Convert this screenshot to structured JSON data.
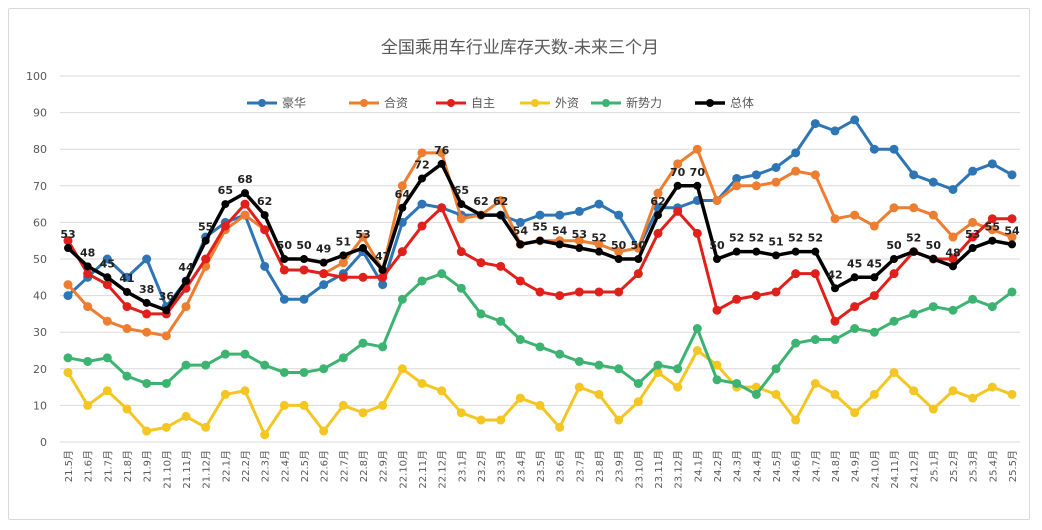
{
  "chart_data": {
    "type": "line",
    "title": "全国乘用车行业库存天数-未来三个月",
    "ylim": [
      0,
      100
    ],
    "yticks": [
      0,
      10,
      20,
      30,
      40,
      50,
      60,
      70,
      80,
      90,
      100
    ],
    "grid": true,
    "legend_position": "top",
    "categories": [
      "21.5月",
      "21.6月",
      "21.7月",
      "21.8月",
      "21.9月",
      "21.10月",
      "21.11月",
      "21.12月",
      "22.1月",
      "22.2月",
      "22.3月",
      "22.4月",
      "22.5月",
      "22.6月",
      "22.7月",
      "22.8月",
      "22.9月",
      "22.10月",
      "22.11月",
      "22.12月",
      "23.1月",
      "23.2月",
      "23.3月",
      "23.4月",
      "23.5月",
      "23.6月",
      "23.7月",
      "23.8月",
      "23.9月",
      "23.10月",
      "23.11月",
      "23.12月",
      "24.1月",
      "24.2月",
      "24.3月",
      "24.4月",
      "24.5月",
      "24.6月",
      "24.7月",
      "24.8月",
      "24.9月",
      "24.10月",
      "24.11月",
      "24.12月",
      "25.1月",
      "25.2月",
      "25.3月",
      "25.4月",
      "25.5月"
    ],
    "series": [
      {
        "name": "豪华",
        "color": "#2e75b6",
        "values": [
          40,
          45,
          50,
          45,
          50,
          37,
          44,
          56,
          60,
          62,
          48,
          39,
          39,
          43,
          46,
          52,
          43,
          60,
          65,
          64,
          62,
          62,
          62,
          60,
          62,
          62,
          63,
          65,
          62,
          53,
          64,
          64,
          66,
          66,
          72,
          73,
          75,
          79,
          87,
          85,
          88,
          80,
          80,
          73,
          71,
          69,
          74,
          76,
          73
        ]
      },
      {
        "name": "合资",
        "color": "#ed7d31",
        "values": [
          43,
          37,
          33,
          31,
          30,
          29,
          37,
          48,
          58,
          62,
          58,
          47,
          47,
          46,
          49,
          56,
          47,
          70,
          79,
          79,
          61,
          62,
          66,
          54,
          55,
          55,
          55,
          54,
          52,
          53,
          68,
          76,
          80,
          66,
          70,
          70,
          71,
          74,
          73,
          61,
          62,
          59,
          64,
          64,
          62,
          56,
          60,
          58,
          56
        ]
      },
      {
        "name": "自主",
        "color": "#e0201b",
        "values": [
          55,
          46,
          43,
          37,
          35,
          35,
          42,
          50,
          59,
          65,
          58,
          47,
          47,
          46,
          45,
          45,
          45,
          52,
          59,
          64,
          52,
          49,
          48,
          44,
          41,
          40,
          41,
          41,
          41,
          46,
          57,
          63,
          57,
          36,
          39,
          40,
          41,
          46,
          46,
          33,
          37,
          40,
          46,
          52,
          50,
          50,
          56,
          61,
          61
        ]
      },
      {
        "name": "外资",
        "color": "#f3c623",
        "values": [
          19,
          10,
          14,
          9,
          3,
          4,
          7,
          4,
          13,
          14,
          2,
          10,
          10,
          3,
          10,
          8,
          10,
          20,
          16,
          14,
          8,
          6,
          6,
          12,
          10,
          4,
          15,
          13,
          6,
          11,
          19,
          15,
          25,
          21,
          15,
          15,
          13,
          6,
          16,
          13,
          8,
          13,
          19,
          14,
          9,
          14,
          12,
          15,
          13
        ]
      },
      {
        "name": "新势力",
        "color": "#3cb371",
        "values": [
          23,
          22,
          23,
          18,
          16,
          16,
          21,
          21,
          24,
          24,
          21,
          19,
          19,
          20,
          23,
          27,
          26,
          39,
          44,
          46,
          42,
          35,
          33,
          28,
          26,
          24,
          22,
          21,
          20,
          16,
          21,
          20,
          31,
          17,
          16,
          13,
          20,
          27,
          28,
          28,
          31,
          30,
          33,
          35,
          37,
          36,
          39,
          37,
          41
        ]
      },
      {
        "name": "总体",
        "color": "#000000",
        "labeled": true,
        "values": [
          53,
          48,
          45,
          41,
          38,
          36,
          44,
          55,
          65,
          68,
          62,
          50,
          50,
          49,
          51,
          53,
          47,
          64,
          72,
          76,
          65,
          62,
          62,
          54,
          55,
          54,
          53,
          52,
          50,
          50,
          62,
          70,
          70,
          50,
          52,
          52,
          51,
          52,
          52,
          42,
          45,
          45,
          50,
          52,
          50,
          48,
          53,
          55,
          54
        ]
      }
    ]
  }
}
